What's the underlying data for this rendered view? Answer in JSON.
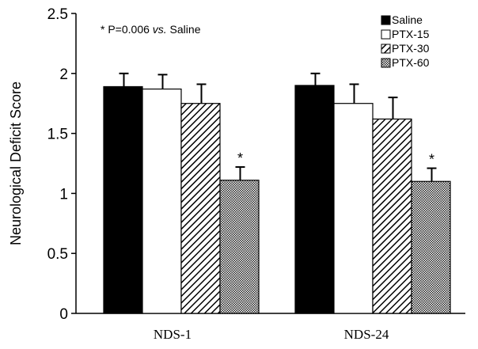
{
  "chart_data": {
    "type": "bar",
    "title": "",
    "xlabel": "",
    "ylabel": "Neurological  Deficit Score",
    "ylim": [
      0,
      2.5
    ],
    "yticks": [
      "0",
      "0.5",
      "1",
      "1.5",
      "2",
      "2.5"
    ],
    "ytick_values": [
      0,
      0.5,
      1,
      1.5,
      2,
      2.5
    ],
    "categories": [
      "NDS-1",
      "NDS-24"
    ],
    "series": [
      {
        "name": "Saline",
        "values": [
          1.89,
          1.9
        ],
        "errors": [
          0.11,
          0.1
        ],
        "pattern": "solid-black",
        "stars": [
          "",
          ""
        ]
      },
      {
        "name": "PTX-15",
        "values": [
          1.87,
          1.75
        ],
        "errors": [
          0.12,
          0.16
        ],
        "pattern": "white",
        "stars": [
          "",
          ""
        ]
      },
      {
        "name": "PTX-30",
        "values": [
          1.75,
          1.62
        ],
        "errors": [
          0.16,
          0.18
        ],
        "pattern": "diagonal-hatch",
        "stars": [
          "",
          ""
        ]
      },
      {
        "name": "PTX-60",
        "values": [
          1.11,
          1.1
        ],
        "errors": [
          0.11,
          0.11
        ],
        "pattern": "crosshatch",
        "stars": [
          "*",
          "*"
        ]
      }
    ],
    "annotation": {
      "prefix": "* P=0.006 ",
      "italic": "vs.",
      "suffix": " Saline"
    },
    "legend_position": "top-right",
    "grid": false
  }
}
